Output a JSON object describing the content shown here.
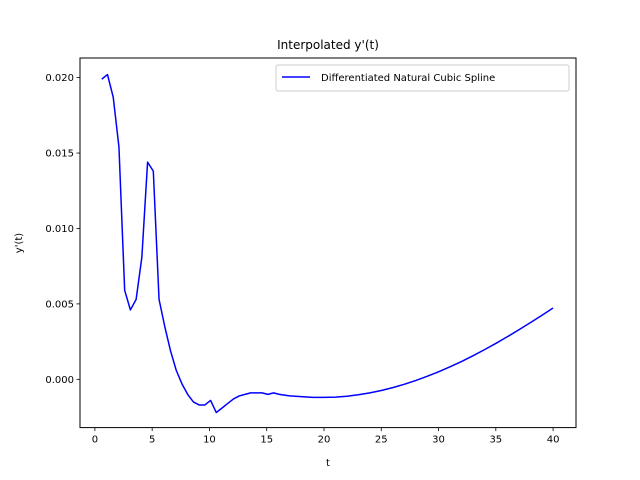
{
  "chart_data": {
    "type": "line",
    "title": "Interpolated y'(t)",
    "xlabel": "t",
    "ylabel": "y'(t)",
    "xlim": [
      -1.3,
      42.0
    ],
    "ylim": [
      -0.0032,
      0.0213
    ],
    "x_ticks": [
      0,
      5,
      10,
      15,
      20,
      25,
      30,
      35,
      40
    ],
    "x_tick_labels": [
      "0",
      "5",
      "10",
      "15",
      "20",
      "25",
      "30",
      "35",
      "40"
    ],
    "y_ticks": [
      0.0,
      0.005,
      0.01,
      0.015,
      0.02
    ],
    "y_tick_labels": [
      "0.000",
      "0.005",
      "0.010",
      "0.015",
      "0.020"
    ],
    "grid": false,
    "legend_position": "top-right",
    "series": [
      {
        "name": "Differentiated Natural Cubic Spline",
        "color": "#0000ff",
        "x": [
          0.6,
          1.1,
          1.6,
          2.1,
          2.6,
          3.1,
          3.6,
          4.1,
          4.6,
          5.1,
          5.6,
          6.1,
          6.6,
          7.1,
          7.6,
          8.1,
          8.6,
          9.1,
          9.6,
          10.1,
          10.6,
          11.1,
          11.6,
          12.1,
          12.6,
          13.1,
          13.6,
          14.1,
          14.6,
          15.1,
          15.6,
          16.1,
          17.0,
          18.0,
          19.0,
          20.0,
          21.0,
          22.0,
          23.0,
          24.0,
          25.0,
          26.0,
          27.0,
          28.0,
          29.0,
          30.0,
          31.0,
          32.0,
          33.0,
          34.0,
          35.0,
          36.0,
          37.0,
          38.0,
          39.0,
          40.0
        ],
        "y": [
          0.0199,
          0.0202,
          0.0187,
          0.0154,
          0.0059,
          0.0046,
          0.0053,
          0.0081,
          0.0144,
          0.0138,
          0.0053,
          0.0035,
          0.0019,
          0.0006,
          -0.0003,
          -0.001,
          -0.0015,
          -0.0017,
          -0.0017,
          -0.0014,
          -0.0022,
          -0.0019,
          -0.0016,
          -0.0013,
          -0.0011,
          -0.001,
          -0.0009,
          -0.0009,
          -0.0009,
          -0.001,
          -0.0009,
          -0.001,
          -0.0011,
          -0.00115,
          -0.0012,
          -0.0012,
          -0.00118,
          -0.00112,
          -0.00102,
          -0.0009,
          -0.00074,
          -0.00055,
          -0.00033,
          -8e-05,
          0.0002,
          0.0005,
          0.00083,
          0.00118,
          0.00156,
          0.00196,
          0.00238,
          0.00282,
          0.00328,
          0.00375,
          0.00423,
          0.00473
        ]
      }
    ]
  }
}
